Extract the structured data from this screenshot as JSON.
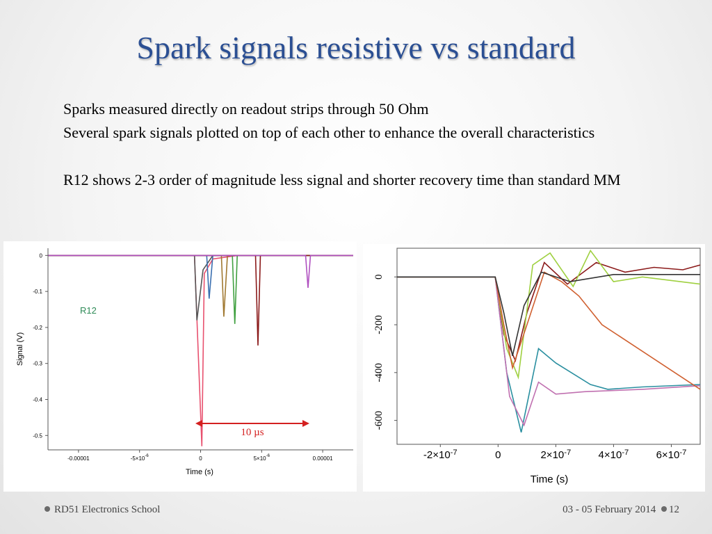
{
  "slide": {
    "title": "Spark signals resistive vs standard",
    "lines": [
      "Sparks measured directly on readout strips through 50 Ohm",
      "Several spark signals plotted on top of each other to enhance the overall characteristics",
      "R12 shows 2-3 order of magnitude less signal and shorter recovery time than standard MM"
    ],
    "footer_left": "RD51 Electronics School",
    "footer_right": "03 - 05 February 2014",
    "page_number": "12"
  },
  "chart_data": [
    {
      "type": "line",
      "title": "",
      "xlabel": "Time (s)",
      "ylabel": "Signal (V)",
      "xlim": [
        -1.25e-05,
        1.25e-05
      ],
      "ylim": [
        -0.54,
        0.02
      ],
      "x_ticks": [
        "-0.00001",
        "-5x10-6",
        "0",
        "5x10-6",
        "0.00001"
      ],
      "y_ticks": [
        "0",
        "-0.1",
        "-0.2",
        "-0.3",
        "-0.4",
        "-0.5"
      ],
      "annotations": [
        "R12",
        "10 µs"
      ],
      "annotation_colors": {
        "R12": "#2e8b57",
        "10 µs": "#d42020"
      },
      "grid": false,
      "series": [
        {
          "color": "#e8506e",
          "x": [
            -1.25e-05,
            -5e-07,
            1e-07,
            3e-07,
            1e-06,
            3e-06,
            1.25e-05
          ],
          "y": [
            0.0,
            0.0,
            -0.53,
            -0.05,
            -0.01,
            0.0,
            0.0
          ]
        },
        {
          "color": "#555555",
          "x": [
            -1.25e-05,
            -5e-07,
            -3e-07,
            2e-07,
            1e-06,
            1.25e-05
          ],
          "y": [
            0.0,
            0.0,
            -0.18,
            -0.04,
            0.0,
            0.0
          ]
        },
        {
          "color": "#3a6fb0",
          "x": [
            -1.25e-05,
            5e-07,
            7e-07,
            1e-06,
            1.25e-05
          ],
          "y": [
            0.0,
            0.0,
            -0.12,
            0.0,
            0.0
          ]
        },
        {
          "color": "#a07830",
          "x": [
            -1.25e-05,
            1.7e-06,
            1.9e-06,
            2.2e-06,
            1.25e-05
          ],
          "y": [
            0.0,
            0.0,
            -0.17,
            0.0,
            0.0
          ]
        },
        {
          "color": "#40a040",
          "x": [
            -1.25e-05,
            2.6e-06,
            2.8e-06,
            3e-06,
            1.25e-05
          ],
          "y": [
            0.0,
            0.0,
            -0.19,
            0.0,
            0.0
          ]
        },
        {
          "color": "#8b1a1a",
          "x": [
            -1.25e-05,
            4.5e-06,
            4.7e-06,
            4.9e-06,
            1.25e-05
          ],
          "y": [
            0.0,
            0.0,
            -0.25,
            0.0,
            0.0
          ]
        },
        {
          "color": "#b050c0",
          "x": [
            -1.25e-05,
            8.6e-06,
            8.8e-06,
            9e-06,
            1.25e-05
          ],
          "y": [
            0.0,
            0.0,
            -0.09,
            0.0,
            0.0
          ]
        }
      ]
    },
    {
      "type": "line",
      "title": "",
      "xlabel": "Time (s)",
      "ylabel": "",
      "xlim": [
        -3.5e-07,
        7e-07
      ],
      "ylim": [
        -700,
        120
      ],
      "x_ticks": [
        "-2x10-7",
        "0",
        "2x10-7",
        "4x10-7",
        "6x10-7"
      ],
      "y_ticks": [
        "0",
        "-200",
        "-400",
        "-600"
      ],
      "grid": false,
      "series": [
        {
          "color": "#8b1a1a",
          "x": [
            -3.5e-07,
            -1e-08,
            2e-08,
            6e-08,
            1e-07,
            1.6e-07,
            2.4e-07,
            3.4e-07,
            4.4e-07,
            5.4e-07,
            6.4e-07,
            7e-07
          ],
          "y": [
            0,
            0,
            -240,
            -350,
            -150,
            60,
            -30,
            60,
            20,
            40,
            30,
            50
          ]
        },
        {
          "color": "#2a8fa0",
          "x": [
            -3.5e-07,
            -1e-08,
            3e-08,
            8e-08,
            1.4e-07,
            2e-07,
            3.2e-07,
            3.8e-07,
            5e-07,
            7e-07
          ],
          "y": [
            0,
            0,
            -400,
            -650,
            -300,
            -360,
            -450,
            -470,
            -460,
            -450
          ]
        },
        {
          "color": "#9fd040",
          "x": [
            -3.5e-07,
            -1e-08,
            3e-08,
            7e-08,
            1.2e-07,
            1.8e-07,
            2.6e-07,
            3.2e-07,
            4e-07,
            5e-07,
            7e-07
          ],
          "y": [
            0,
            0,
            -300,
            -420,
            50,
            100,
            -40,
            110,
            -20,
            0,
            -30
          ]
        },
        {
          "color": "#c070b0",
          "x": [
            -3.5e-07,
            -1e-08,
            4e-08,
            9e-08,
            1.4e-07,
            2e-07,
            3e-07,
            5e-07,
            7e-07
          ],
          "y": [
            0,
            0,
            -500,
            -620,
            -440,
            -490,
            -480,
            -470,
            -455
          ]
        },
        {
          "color": "#d06030",
          "x": [
            -3.5e-07,
            -1e-08,
            2e-08,
            5e-08,
            1e-07,
            1.6e-07,
            2.2e-07,
            2.8e-07,
            3.6e-07,
            7e-07
          ],
          "y": [
            0,
            0,
            -200,
            -380,
            -200,
            20,
            -20,
            -80,
            -200,
            -470
          ]
        },
        {
          "color": "#333333",
          "x": [
            -3.5e-07,
            -1e-08,
            2e-08,
            5e-08,
            9e-08,
            1.5e-07,
            2.5e-07,
            4e-07,
            7e-07
          ],
          "y": [
            0,
            0,
            -150,
            -330,
            -120,
            20,
            -20,
            10,
            10
          ]
        }
      ]
    }
  ]
}
